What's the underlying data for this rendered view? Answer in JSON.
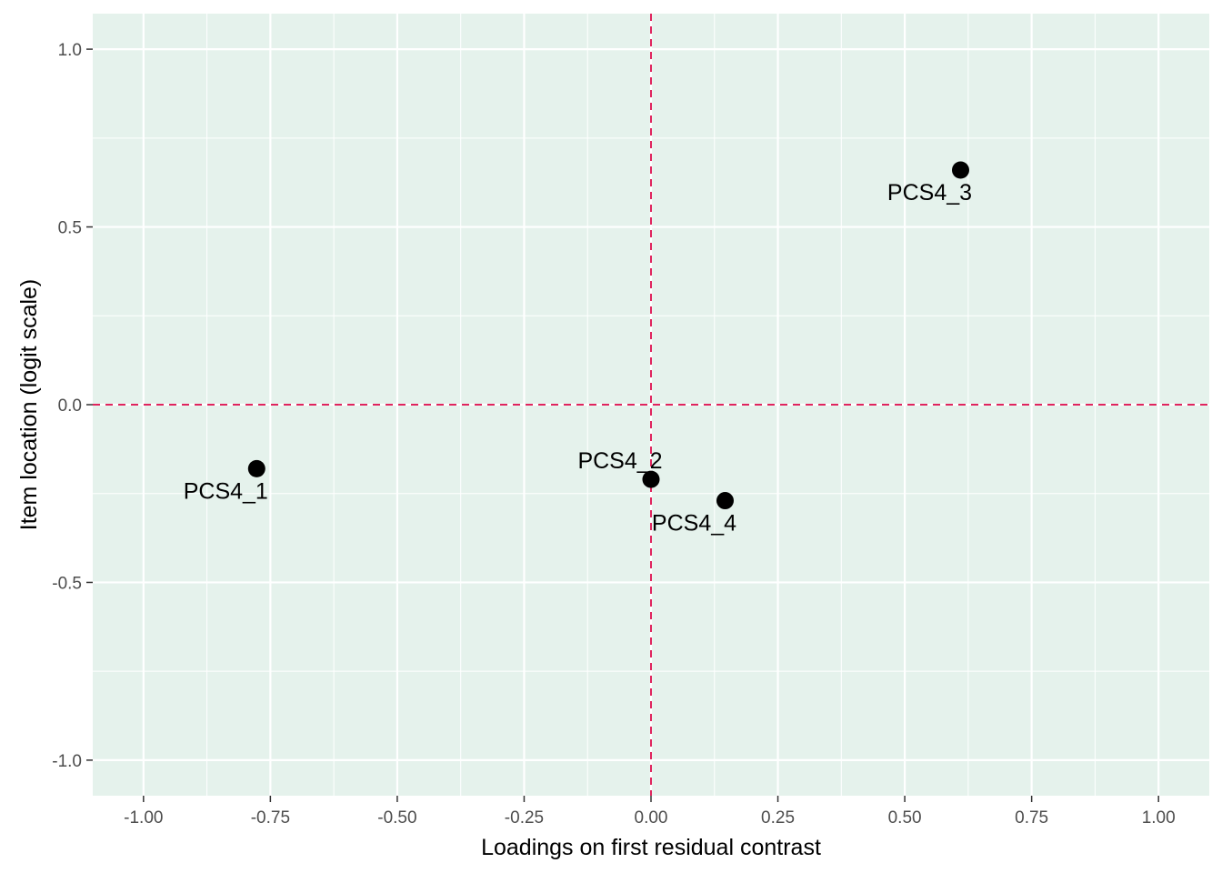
{
  "chart_data": {
    "type": "scatter",
    "title": "",
    "xlabel": "Loadings on first residual contrast",
    "ylabel": "Item location (logit scale)",
    "xlim": [
      -1.1,
      1.1
    ],
    "ylim": [
      -1.1,
      1.1
    ],
    "x_ticks": [
      -1.0,
      -0.75,
      -0.5,
      -0.25,
      0.0,
      0.25,
      0.5,
      0.75,
      1.0
    ],
    "x_tick_labels": [
      "-1.00",
      "-0.75",
      "-0.50",
      "-0.25",
      "0.00",
      "0.25",
      "0.50",
      "0.75",
      "1.00"
    ],
    "y_ticks": [
      -1.0,
      -0.5,
      0.0,
      0.5,
      1.0
    ],
    "y_tick_labels": [
      "-1.0",
      "-0.5",
      "0.0",
      "0.5",
      "1.0"
    ],
    "grid": true,
    "reference_lines": {
      "x": 0.0,
      "y": 0.0,
      "style": "dashed"
    },
    "points": [
      {
        "label": "PCS4_1",
        "x": -0.777,
        "y": -0.18,
        "label_pos": "below"
      },
      {
        "label": "PCS4_2",
        "x": 0.0,
        "y": -0.21,
        "label_pos": "above"
      },
      {
        "label": "PCS4_3",
        "x": 0.61,
        "y": 0.66,
        "label_pos": "below"
      },
      {
        "label": "PCS4_4",
        "x": 0.146,
        "y": -0.27,
        "label_pos": "below"
      }
    ],
    "colors": {
      "panel_background": "#e5f2ec",
      "grid_major": "#ffffff",
      "grid_minor": "#ffffff",
      "reference_line": "#e0245e",
      "point": "#000000",
      "tick": "#333333"
    }
  }
}
